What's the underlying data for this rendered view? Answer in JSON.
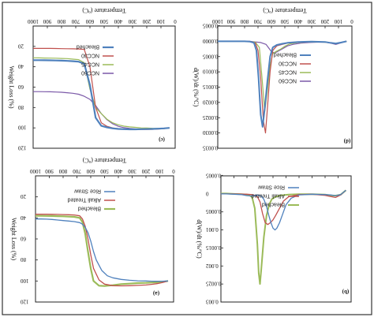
{
  "figure": {
    "outer_border_color": "#333333"
  },
  "chart_data": [
    {
      "id": "c",
      "type": "line",
      "panel_label": "(c)",
      "xlabel": "Temperature (ºC)",
      "ylabel": "Weight Loss (%)",
      "xlim": [
        0,
        500
      ],
      "ylim": [
        0,
        120
      ],
      "xticks": [
        0,
        50,
        100,
        150,
        200,
        250,
        300,
        350,
        400,
        450,
        500
      ],
      "yticks": [
        0,
        20,
        40,
        60,
        80,
        100,
        120
      ],
      "xtick_labels": [
        "0",
        "100",
        "200",
        "300",
        "400",
        "500",
        "600",
        "700",
        "800",
        "900",
        "1000"
      ],
      "ytick_labels": [
        "",
        "20",
        "40",
        "60",
        "80",
        "100",
        "120"
      ],
      "legend": [
        "NCC60",
        "NCC45",
        "NCC30",
        "Bleached"
      ],
      "series": [
        {
          "name": "NCC60",
          "color": "#7b59a8",
          "width": 1.2,
          "x": [
            20,
            40,
            60,
            80,
            100,
            120,
            140,
            160,
            180,
            200,
            220,
            240,
            260,
            280,
            300,
            320,
            340,
            360,
            380,
            400,
            420,
            440,
            460,
            480,
            500
          ],
          "y": [
            100,
            100.5,
            100.8,
            101,
            101.2,
            101.2,
            101,
            100.5,
            99.8,
            98.5,
            96,
            92,
            86,
            78,
            72,
            69,
            67,
            66,
            65.5,
            65,
            64.8,
            64.6,
            64.5,
            64.4,
            64.4
          ]
        },
        {
          "name": "NCC45",
          "color": "#9bbb59",
          "width": 1.2,
          "x": [
            20,
            40,
            60,
            80,
            100,
            120,
            140,
            160,
            180,
            200,
            220,
            240,
            260,
            280,
            300,
            320,
            340,
            360,
            380,
            400,
            420,
            440,
            460,
            480,
            500
          ],
          "y": [
            100,
            100.4,
            100.5,
            100.4,
            100.2,
            100,
            99.5,
            99,
            98.3,
            97,
            95,
            91.5,
            86,
            80,
            62,
            36,
            33,
            32.5,
            32,
            31.8,
            31.6,
            31.5,
            31.4,
            31.3,
            31.2
          ]
        },
        {
          "name": "NCC30",
          "color": "#c0504d",
          "width": 1.2,
          "x": [
            20,
            40,
            60,
            80,
            100,
            120,
            140,
            160,
            180,
            200,
            220,
            240,
            260,
            280,
            300,
            320,
            340,
            360,
            380,
            400,
            420,
            440,
            460,
            480,
            500
          ],
          "y": [
            100,
            100.8,
            101.2,
            101.4,
            101.5,
            101.5,
            101.5,
            101.4,
            101.2,
            100.8,
            100,
            98.5,
            95,
            80,
            40,
            23,
            22.5,
            22.4,
            22.3,
            22.2,
            22.1,
            22,
            22,
            22,
            22
          ]
        },
        {
          "name": "Bleached",
          "color": "#4f81bd",
          "width": 2.2,
          "x": [
            20,
            40,
            60,
            80,
            100,
            120,
            140,
            160,
            180,
            200,
            220,
            240,
            260,
            280,
            300,
            320,
            340,
            360,
            380,
            400,
            420,
            440,
            460,
            480,
            500
          ],
          "y": [
            100,
            100.5,
            100.8,
            101,
            101.2,
            101.3,
            101.4,
            101.4,
            101.3,
            101,
            100.5,
            99.5,
            98,
            90,
            58,
            37,
            35,
            34.5,
            34.2,
            34,
            33.8,
            33.7,
            33.6,
            33.5,
            33.5
          ]
        }
      ]
    },
    {
      "id": "d",
      "type": "line",
      "panel_label": "(d)",
      "xlabel": "Temperature (ºC)",
      "ylabel": "d(W)/dt (%/ºC)",
      "xlim": [
        0,
        500
      ],
      "ylim": [
        -0.0005,
        0.0035
      ],
      "xticks": [
        0,
        50,
        100,
        150,
        200,
        250,
        300,
        350,
        400,
        450,
        500
      ],
      "yticks": [
        -0.0005,
        0,
        0.0005,
        0.001,
        0.0015,
        0.002,
        0.0025,
        0.003,
        0.0035
      ],
      "xtick_labels": [
        "0",
        "100",
        "200",
        "300",
        "400",
        "500",
        "600",
        "700",
        "800",
        "900",
        "1000"
      ],
      "ytick_labels": [
        "-0.0005",
        "0.0000",
        "0.0005",
        "0.0010",
        "0.0015",
        "0.0020",
        "0.0025",
        "0.0030",
        "0.0035"
      ],
      "legend": [
        "NCC60",
        "NCC45",
        "NCC30",
        "Bleached"
      ],
      "series": [
        {
          "name": "NCC60",
          "color": "#7b59a8",
          "width": 1.2,
          "x": [
            20,
            40,
            60,
            80,
            100,
            130,
            160,
            190,
            220,
            240,
            260,
            270,
            280,
            290,
            300,
            310,
            320,
            340,
            360,
            380,
            400,
            440,
            480,
            500
          ],
          "y": [
            0.0,
            5e-05,
            0.0001,
            6e-05,
            3e-05,
            3e-05,
            4e-05,
            6e-05,
            0.0001,
            0.00015,
            0.00025,
            0.0003,
            0.00035,
            0.00038,
            0.00034,
            0.00022,
            0.0001,
            4e-05,
            2e-05,
            0.0,
            0.0,
            0.0,
            0.0,
            0.0
          ]
        },
        {
          "name": "NCC45",
          "color": "#9bbb59",
          "width": 1.2,
          "x": [
            20,
            40,
            60,
            80,
            100,
            150,
            200,
            230,
            250,
            265,
            280,
            295,
            305,
            315,
            325,
            335,
            345,
            360,
            380,
            400,
            450,
            500
          ],
          "y": [
            0.0,
            4e-05,
            8e-05,
            5e-05,
            3e-05,
            2e-05,
            4e-05,
            8e-05,
            0.00016,
            0.00025,
            0.00032,
            0.0004,
            0.0008,
            0.0016,
            0.0023,
            0.0012,
            0.0002,
            3e-05,
            1e-05,
            0.0,
            0.0,
            0.0
          ]
        },
        {
          "name": "NCC30",
          "color": "#c0504d",
          "width": 1.2,
          "x": [
            20,
            40,
            60,
            80,
            100,
            150,
            200,
            240,
            260,
            280,
            295,
            305,
            315,
            322,
            330,
            340,
            350,
            360,
            380,
            400,
            450,
            500
          ],
          "y": [
            0.0,
            4e-05,
            8e-05,
            5e-05,
            2e-05,
            1e-05,
            3e-05,
            6e-05,
            0.0001,
            0.00015,
            0.0003,
            0.001,
            0.0022,
            0.003,
            0.0026,
            0.0012,
            0.0003,
            5e-05,
            1e-05,
            0.0,
            0.0,
            0.0
          ]
        },
        {
          "name": "Bleached",
          "color": "#4f81bd",
          "width": 2.0,
          "x": [
            20,
            40,
            60,
            80,
            100,
            150,
            200,
            240,
            260,
            280,
            295,
            305,
            315,
            325,
            333,
            340,
            348,
            356,
            365,
            380,
            400,
            450,
            500
          ],
          "y": [
            0.0,
            4e-05,
            7e-05,
            5e-05,
            2e-05,
            1e-05,
            2e-05,
            5e-05,
            8e-05,
            0.00012,
            0.0002,
            0.0005,
            0.0013,
            0.0022,
            0.0028,
            0.0024,
            0.0012,
            0.0003,
            5e-05,
            1e-05,
            0.0,
            0.0,
            0.0
          ]
        }
      ]
    },
    {
      "id": "a",
      "type": "line",
      "panel_label": "(a)",
      "xlabel": "Temperature (ºC)",
      "ylabel": "Weight Loss (%)",
      "xlim": [
        0,
        500
      ],
      "ylim": [
        0,
        120
      ],
      "xticks": [
        0,
        50,
        100,
        150,
        200,
        250,
        300,
        350,
        400,
        450,
        500
      ],
      "yticks": [
        0,
        20,
        40,
        60,
        80,
        100,
        120
      ],
      "xtick_labels": [
        "0",
        "100",
        "200",
        "300",
        "400",
        "500",
        "600",
        "700",
        "800",
        "900",
        "1000"
      ],
      "ytick_labels": [
        "",
        "20",
        "40",
        "60",
        "80",
        "100",
        "120"
      ],
      "legend": [
        "Bleached",
        "Alkali Treated",
        "Rice Straw"
      ],
      "series": [
        {
          "name": "Bleached",
          "color": "#9bbb59",
          "width": 2.2,
          "x": [
            20,
            40,
            60,
            80,
            100,
            130,
            160,
            190,
            220,
            250,
            270,
            290,
            300,
            310,
            320,
            330,
            340,
            360,
            380,
            400,
            420,
            440,
            460,
            480,
            500
          ],
          "y": [
            100,
            100.8,
            101.2,
            101.5,
            101.8,
            102,
            102.5,
            103,
            104,
            104.8,
            104.5,
            100,
            88,
            72,
            55,
            44,
            40,
            39,
            38.8,
            38.5,
            38.3,
            38.2,
            38.1,
            38,
            38
          ]
        },
        {
          "name": "Alkali Treated",
          "color": "#c0504d",
          "width": 1.3,
          "x": [
            20,
            40,
            60,
            80,
            100,
            130,
            160,
            190,
            220,
            250,
            270,
            290,
            300,
            310,
            320,
            330,
            340,
            360,
            380,
            400,
            420,
            440,
            460,
            480,
            500
          ],
          "y": [
            100,
            101.5,
            102.5,
            103.2,
            103.8,
            104.2,
            104.5,
            104.6,
            104.5,
            103,
            99,
            88,
            75,
            60,
            48,
            41,
            38,
            37.2,
            37,
            36.8,
            36.7,
            36.6,
            36.5,
            36.5,
            36.5
          ]
        },
        {
          "name": "Rice Straw",
          "color": "#4f81bd",
          "width": 1.3,
          "x": [
            20,
            40,
            60,
            80,
            100,
            130,
            160,
            190,
            220,
            240,
            260,
            280,
            290,
            300,
            310,
            320,
            330,
            340,
            360,
            380,
            400,
            420,
            440,
            460,
            480,
            500
          ],
          "y": [
            100,
            100.2,
            100.3,
            100.2,
            100,
            99.8,
            99.3,
            98.5,
            97,
            95,
            90,
            80,
            72,
            62,
            54,
            49,
            46,
            44.5,
            43.5,
            43,
            42.5,
            42,
            41.5,
            41.2,
            41,
            41
          ]
        }
      ]
    },
    {
      "id": "b",
      "type": "line",
      "panel_label": "(b)",
      "xlabel": "",
      "ylabel": "d(W)/dt (%/ºC)",
      "xlim": [
        0,
        500
      ],
      "ylim": [
        -0.0005,
        0.003
      ],
      "xticks": [
        0,
        50,
        100,
        150,
        200,
        250,
        300,
        350,
        400,
        450,
        500
      ],
      "yticks": [
        -0.0005,
        0,
        0.0005,
        0.001,
        0.0015,
        0.002,
        0.0025,
        0.003
      ],
      "xtick_labels": [],
      "ytick_labels": [
        "-0.0005",
        "0",
        "0.0005",
        "0.001",
        "0.0015",
        "0.002",
        "0.0025",
        "0.003"
      ],
      "legend": [
        "Bleached",
        "Alkali Treated",
        "Rice Straw"
      ],
      "series": [
        {
          "name": "Bleached",
          "color": "#9bbb59",
          "width": 2.0,
          "x": [
            20,
            40,
            60,
            80,
            100,
            150,
            200,
            240,
            270,
            290,
            305,
            315,
            325,
            335,
            345,
            350,
            355,
            360,
            370,
            380,
            390,
            400,
            420,
            450,
            480,
            500
          ],
          "y": [
            -0.0001,
            2e-05,
            5e-05,
            4e-05,
            2e-05,
            1e-05,
            1e-05,
            2e-05,
            4e-05,
            8e-05,
            0.00015,
            0.0003,
            0.0006,
            0.0012,
            0.0021,
            0.0025,
            0.0022,
            0.0014,
            0.0004,
            0.0001,
            4e-05,
            2e-05,
            1e-05,
            0.0,
            -1e-05,
            -1e-05
          ]
        },
        {
          "name": "Alkali Treated",
          "color": "#c0504d",
          "width": 1.3,
          "x": [
            20,
            40,
            60,
            80,
            100,
            150,
            200,
            240,
            260,
            275,
            290,
            300,
            310,
            320,
            330,
            340,
            350,
            360,
            370,
            380,
            400,
            450,
            500
          ],
          "y": [
            -0.0001,
            3e-05,
            0.0001,
            7e-05,
            4e-05,
            1e-05,
            2e-05,
            8e-05,
            0.0002,
            0.0004,
            0.0006,
            0.00072,
            0.0008,
            0.00085,
            0.0008,
            0.00055,
            0.00022,
            8e-05,
            4e-05,
            2e-05,
            1e-05,
            0.0,
            0.0
          ]
        },
        {
          "name": "Rice Straw",
          "color": "#4f81bd",
          "width": 1.3,
          "x": [
            20,
            40,
            60,
            80,
            100,
            150,
            200,
            230,
            250,
            265,
            275,
            285,
            292,
            300,
            308,
            316,
            325,
            335,
            345,
            360,
            380,
            400,
            420,
            450,
            480,
            500
          ],
          "y": [
            -0.0001,
            2e-05,
            5e-05,
            3e-05,
            2e-05,
            1e-05,
            3e-05,
            0.00012,
            0.0003,
            0.0006,
            0.0008,
            0.00095,
            0.001,
            0.00095,
            0.0008,
            0.0006,
            0.00035,
            0.00015,
            6e-05,
            3e-05,
            6e-05,
            5e-05,
            2e-05,
            1e-05,
            0.0,
            0.0
          ]
        }
      ]
    }
  ]
}
